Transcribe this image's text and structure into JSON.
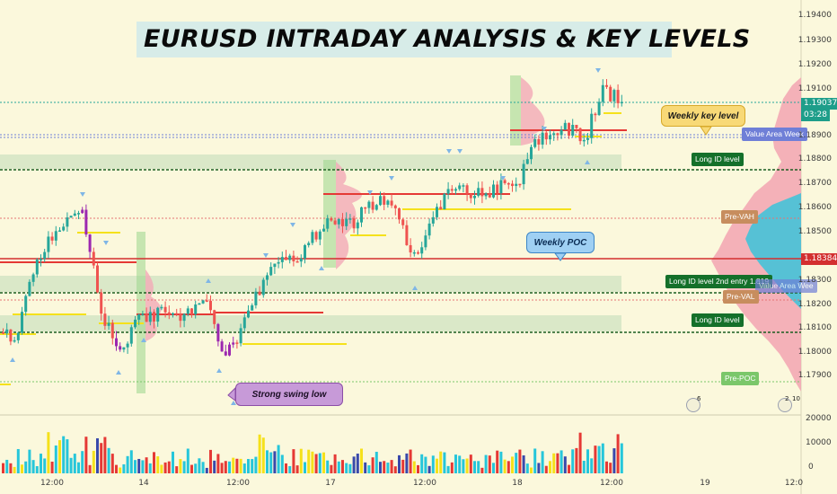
{
  "title": "EURUSD INTRADAY ANALYSIS & KEY LEVELS",
  "callouts": {
    "weekly_key_level": "Weekly key level",
    "weekly_poc": "Weekly POC",
    "strong_swing_low": "Strong swing low"
  },
  "level_tags": {
    "long_id_1": "Long ID level",
    "long_id_2": "Long ID level 2nd entry 1.819",
    "long_id_3": "Long ID level",
    "value_area_week": "Value Area Week",
    "value_area_week_2": "Value Area Wee",
    "pre_vah": "Pre-VAH",
    "pre_val": "Pre-VAL",
    "pre_poc": "Pre-POC"
  },
  "price_axis": {
    "ticks": [
      "1.19400",
      "1.19300",
      "1.19200",
      "1.19100",
      "1.18900",
      "1.18800",
      "1.18700",
      "1.18600",
      "1.18500",
      "1.18300",
      "1.18200",
      "1.18100",
      "1.18000",
      "1.17900"
    ],
    "current_price": "1.19037",
    "countdown": "03:28",
    "poc_price": "1.18384"
  },
  "volume_axis": {
    "ticks": [
      "20000",
      "10000",
      "0"
    ]
  },
  "time_axis": {
    "labels": [
      "12:00",
      "14",
      "12:00",
      "17",
      "12:00",
      "18",
      "12:00",
      "19",
      "12:0"
    ]
  },
  "event_badges": {
    "first": "6",
    "second": "2",
    "third": "10"
  },
  "colors": {
    "background": "#fbf8dc",
    "bull_candle": "#26a69a",
    "bear_candle": "#ef5350",
    "highlight_candle": "#9c27b0",
    "poc_line": "#e53935",
    "long_id_line": "#1b5e20",
    "yellow_level": "#f5e11b",
    "current_price_color": "#1e9e8a"
  }
}
